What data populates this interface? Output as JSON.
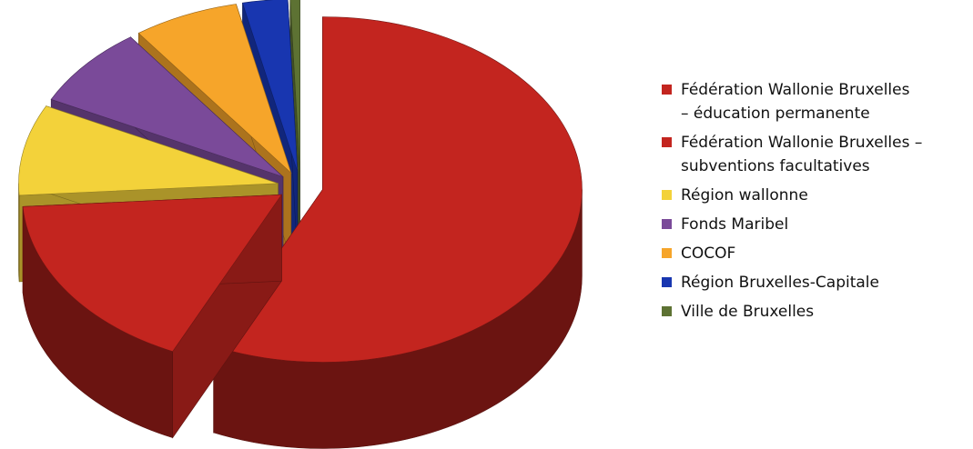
{
  "chart_data": {
    "type": "pie",
    "title": "",
    "slices": [
      {
        "label": "  Fédération Wallonie Bruxelles\n– éducation permanente",
        "value": 56.9,
        "color": "#c3251f"
      },
      {
        "label": "Fédération Wallonie Bruxelles –\nsubventions facultatives",
        "value": 17.0,
        "color": "#c3251f"
      },
      {
        "label": "Région  wallonne",
        "value": 8.5,
        "color": "#f3d23a"
      },
      {
        "label": "Fonds  Maribel",
        "value": 7.6,
        "color": "#7a4a99"
      },
      {
        "label": "COCOF",
        "value": 6.6,
        "color": "#f6a52a"
      },
      {
        "label": "Région  Bruxelles-Capitale",
        "value": 2.8,
        "color": "#1836b0"
      },
      {
        "label": "Ville  de  Bruxelles",
        "value": 0.6,
        "color": "#5d7233"
      }
    ],
    "legend_position": "right",
    "exploded": true,
    "three_d": true
  }
}
